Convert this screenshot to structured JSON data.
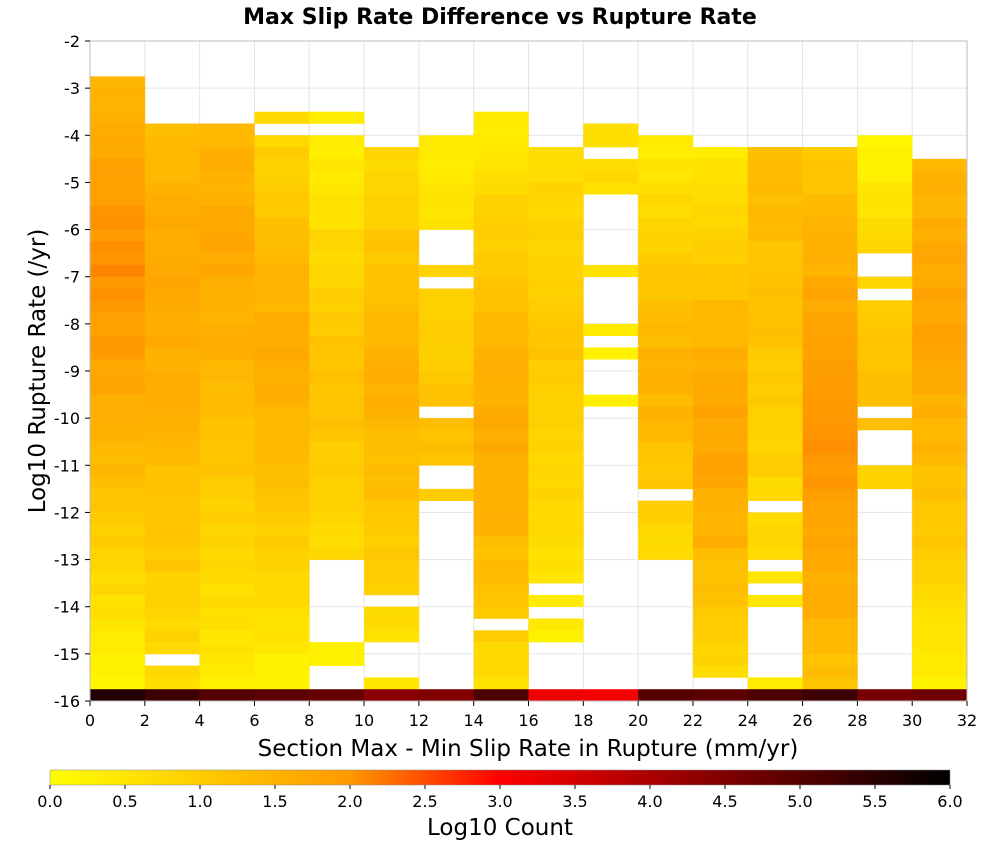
{
  "chart_data": {
    "type": "heatmap",
    "title": "Max Slip Rate Difference vs Rupture Rate",
    "xlabel": "Section Max - Min Slip Rate in Rupture (mm/yr)",
    "ylabel": "Log10 Rupture Rate (/yr)",
    "xlim": [
      0,
      32
    ],
    "ylim": [
      -16,
      -2
    ],
    "x_ticks": [
      0,
      2,
      4,
      6,
      8,
      10,
      12,
      14,
      16,
      18,
      20,
      22,
      24,
      26,
      28,
      30,
      32
    ],
    "y_ticks": [
      -2,
      -3,
      -4,
      -5,
      -6,
      -7,
      -8,
      -9,
      -10,
      -11,
      -12,
      -13,
      -14,
      -15,
      -16
    ],
    "x_bin_width": 2,
    "y_bin_width": 0.25,
    "grid": true,
    "colorbar": {
      "label": "Log10 Count",
      "range": [
        0.0,
        6.0
      ],
      "ticks": [
        0.0,
        0.5,
        1.0,
        1.5,
        2.0,
        2.5,
        3.0,
        3.5,
        4.0,
        4.5,
        5.0,
        5.5,
        6.0
      ],
      "tick_labels": [
        "0.0",
        "0.5",
        "1.0",
        "1.5",
        "2.0",
        "2.5",
        "3.0",
        "3.5",
        "4.0",
        "4.5",
        "5.0",
        "5.5",
        "6.0"
      ],
      "colormap": [
        "#ffff00",
        "#ff9900",
        "#ff0000",
        "#000000"
      ],
      "placement": "bottom"
    },
    "columns": [
      {
        "x": 1,
        "top": -2.75,
        "bottom": -15.75,
        "peak": -6.75,
        "peak_value": 2.1,
        "edge_value": 0.1,
        "gaps": []
      },
      {
        "x": 3,
        "top": -3.75,
        "bottom": -15.75,
        "peak": -7.25,
        "peak_value": 1.7,
        "edge_value": 0.6,
        "gaps": [
          [
            -15.0,
            -15.25
          ]
        ]
      },
      {
        "x": 5,
        "top": -3.75,
        "bottom": -15.75,
        "peak": -6.5,
        "peak_value": 1.7,
        "edge_value": 0.3,
        "gaps": []
      },
      {
        "x": 7,
        "top": -3.5,
        "bottom": -15.75,
        "peak": -8.5,
        "peak_value": 1.6,
        "edge_value": 0.2,
        "gaps": [
          [
            -3.75,
            -4.0
          ]
        ]
      },
      {
        "x": 9,
        "top": -3.5,
        "bottom": -15.25,
        "peak": -9.5,
        "peak_value": 1.2,
        "edge_value": 0.2,
        "gaps": [
          [
            -3.75,
            -4.0
          ],
          [
            -13.0,
            -14.75
          ]
        ]
      },
      {
        "x": 11,
        "top": -4.25,
        "bottom": -15.75,
        "peak": -9.25,
        "peak_value": 1.5,
        "edge_value": 0.4,
        "gaps": [
          [
            -13.75,
            -14.0
          ],
          [
            -14.75,
            -15.5
          ]
        ]
      },
      {
        "x": 13,
        "top": -4.0,
        "bottom": -11.75,
        "peak": -10.5,
        "peak_value": 1.2,
        "edge_value": 0.3,
        "gaps": [
          [
            -6.0,
            -6.75
          ],
          [
            -7.0,
            -7.25
          ],
          [
            -9.75,
            -10.0
          ],
          [
            -11.0,
            -11.5
          ]
        ]
      },
      {
        "x": 15,
        "top": -3.5,
        "bottom": -15.75,
        "peak": -10.25,
        "peak_value": 1.7,
        "edge_value": 0.3,
        "gaps": [
          [
            -14.25,
            -14.5
          ]
        ]
      },
      {
        "x": 17,
        "top": -4.25,
        "bottom": -14.75,
        "peak": -8.5,
        "peak_value": 1.1,
        "edge_value": 0.3,
        "gaps": [
          [
            -13.5,
            -13.75
          ],
          [
            -14.0,
            -14.25
          ]
        ]
      },
      {
        "x": 19,
        "top": -3.75,
        "bottom": -9.75,
        "peak": -5.0,
        "peak_value": 0.7,
        "edge_value": 0.2,
        "gaps": [
          [
            -4.25,
            -4.5
          ],
          [
            -5.0,
            -5.0
          ],
          [
            -5.25,
            -6.75
          ],
          [
            -7.0,
            -8.0
          ],
          [
            -8.25,
            -8.5
          ],
          [
            -8.75,
            -9.5
          ]
        ]
      },
      {
        "x": 21,
        "top": -4.0,
        "bottom": -13.0,
        "peak": -9.0,
        "peak_value": 1.5,
        "edge_value": 0.3,
        "gaps": [
          [
            -11.5,
            -11.75
          ]
        ]
      },
      {
        "x": 23,
        "top": -4.25,
        "bottom": -15.5,
        "peak": -10.5,
        "peak_value": 1.8,
        "edge_value": 0.4,
        "gaps": []
      },
      {
        "x": 25,
        "top": -4.25,
        "bottom": -15.75,
        "peak": -5.5,
        "peak_value": 1.3,
        "edge_value": 0.3,
        "gaps": [
          [
            -11.75,
            -12.0
          ],
          [
            -13.0,
            -13.25
          ],
          [
            -13.5,
            -13.75
          ],
          [
            -14.0,
            -15.5
          ]
        ]
      },
      {
        "x": 27,
        "top": -4.25,
        "bottom": -15.75,
        "peak": -10.25,
        "peak_value": 2.1,
        "edge_value": 1.0,
        "gaps": []
      },
      {
        "x": 29,
        "top": -4.0,
        "bottom": -11.5,
        "peak": -9.5,
        "peak_value": 1.2,
        "edge_value": 0.2,
        "gaps": [
          [
            -6.5,
            -7.0
          ],
          [
            -7.25,
            -7.5
          ],
          [
            -9.75,
            -10.0
          ],
          [
            -10.25,
            -11.0
          ]
        ]
      },
      {
        "x": 31,
        "top": -4.5,
        "bottom": -15.75,
        "peak": -7.75,
        "peak_value": 1.8,
        "edge_value": 0.3,
        "gaps": []
      }
    ],
    "bottom_row": {
      "y": -15.875,
      "values": [
        5.6,
        5.3,
        5.0,
        4.9,
        4.8,
        4.4,
        4.5,
        5.1,
        3.2,
        3.1,
        5.0,
        4.9,
        5.1,
        5.3,
        4.6,
        4.7
      ]
    }
  }
}
